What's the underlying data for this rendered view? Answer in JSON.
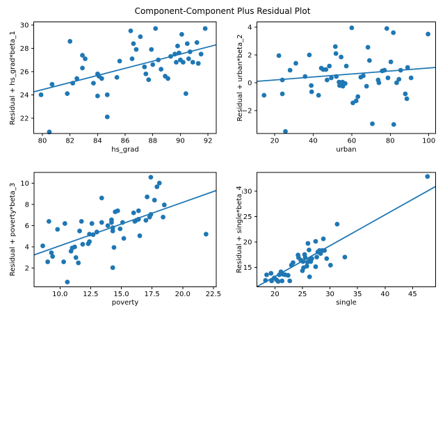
{
  "figure": {
    "title": "Component-Component Plus Residual Plot",
    "background": "#ffffff",
    "accent_color": "#1f77b4",
    "spine_color": "#000000"
  },
  "chart_data": [
    {
      "type": "scatter",
      "title": "",
      "xlabel": "hs_grad",
      "ylabel": "Residual + hs_grad*beta_1",
      "xlim": [
        79.37,
        92.6
      ],
      "ylim": [
        20.67,
        30.27
      ],
      "grid": false,
      "legend": "none",
      "xticks": [
        80,
        82,
        84,
        86,
        88,
        90,
        92
      ],
      "xtick_labels": [
        "80",
        "82",
        "84",
        "86",
        "88",
        "90",
        "92"
      ],
      "yticks": [
        22,
        24,
        26,
        28,
        30
      ],
      "ytick_labels": [
        "22",
        "24",
        "26",
        "28",
        "30"
      ],
      "points": [
        [
          79.9,
          24.0
        ],
        [
          80.5,
          20.8
        ],
        [
          80.7,
          24.9
        ],
        [
          81.8,
          24.1
        ],
        [
          82.0,
          28.6
        ],
        [
          82.2,
          25.0
        ],
        [
          82.5,
          25.4
        ],
        [
          82.9,
          27.4
        ],
        [
          82.9,
          26.3
        ],
        [
          83.1,
          27.1
        ],
        [
          83.7,
          25.0
        ],
        [
          84.0,
          25.8
        ],
        [
          84.0,
          23.9
        ],
        [
          84.1,
          25.6
        ],
        [
          84.3,
          25.4
        ],
        [
          84.7,
          22.1
        ],
        [
          84.7,
          24.0
        ],
        [
          85.4,
          25.5
        ],
        [
          85.6,
          26.9
        ],
        [
          86.4,
          29.5
        ],
        [
          86.5,
          27.1
        ],
        [
          86.6,
          28.4
        ],
        [
          86.8,
          27.9
        ],
        [
          87.1,
          29.0
        ],
        [
          87.4,
          26.4
        ],
        [
          87.5,
          25.8
        ],
        [
          87.7,
          25.3
        ],
        [
          87.9,
          27.9
        ],
        [
          88.0,
          26.6
        ],
        [
          88.2,
          29.7
        ],
        [
          88.4,
          27.0
        ],
        [
          88.6,
          26.2
        ],
        [
          88.9,
          25.6
        ],
        [
          89.1,
          25.4
        ],
        [
          89.3,
          27.3
        ],
        [
          89.6,
          27.5
        ],
        [
          89.7,
          26.8
        ],
        [
          89.8,
          28.2
        ],
        [
          89.9,
          27.6
        ],
        [
          90.0,
          27.0
        ],
        [
          90.1,
          29.2
        ],
        [
          90.2,
          26.8
        ],
        [
          90.4,
          24.1
        ],
        [
          90.5,
          28.4
        ],
        [
          90.6,
          27.1
        ],
        [
          90.7,
          27.7
        ],
        [
          90.9,
          26.8
        ],
        [
          91.2,
          28.5
        ],
        [
          91.3,
          26.7
        ],
        [
          91.5,
          27.5
        ],
        [
          91.8,
          29.7
        ]
      ],
      "trend_line": {
        "x": [
          79.37,
          92.6
        ],
        "y": [
          24.25,
          28.3
        ]
      }
    },
    {
      "type": "scatter",
      "title": "",
      "xlabel": "urban",
      "ylabel": "Residual + urban*beta_2",
      "xlim": [
        10.8,
        103.6
      ],
      "ylim": [
        -3.65,
        4.375
      ],
      "grid": false,
      "legend": "none",
      "xticks": [
        20,
        40,
        60,
        80,
        100
      ],
      "xtick_labels": [
        "20",
        "40",
        "60",
        "80",
        "100"
      ],
      "yticks": [
        -2,
        0,
        2,
        4
      ],
      "ytick_labels": [
        "−2",
        "0",
        "2",
        "4"
      ],
      "points": [
        [
          14.5,
          -0.9
        ],
        [
          22.2,
          1.95
        ],
        [
          24.0,
          0.2
        ],
        [
          24.0,
          -0.8
        ],
        [
          25.6,
          -3.5
        ],
        [
          28.0,
          0.9
        ],
        [
          31.0,
          1.4
        ],
        [
          35.8,
          0.45
        ],
        [
          38.0,
          2.0
        ],
        [
          39.0,
          -0.2
        ],
        [
          39.2,
          -0.65
        ],
        [
          42.8,
          -0.9
        ],
        [
          44.2,
          1.05
        ],
        [
          45.2,
          0.95
        ],
        [
          46.6,
          0.95
        ],
        [
          47.2,
          0.2
        ],
        [
          48.4,
          1.2
        ],
        [
          49.4,
          0.35
        ],
        [
          51.5,
          2.6
        ],
        [
          51.8,
          2.1
        ],
        [
          52.0,
          0.45
        ],
        [
          53.4,
          0.05
        ],
        [
          53.7,
          -0.2
        ],
        [
          54.5,
          1.85
        ],
        [
          55.2,
          0.05
        ],
        [
          55.4,
          -0.25
        ],
        [
          56.6,
          -0.05
        ],
        [
          57.2,
          1.2
        ],
        [
          60.0,
          3.95
        ],
        [
          60.6,
          -1.45
        ],
        [
          62.3,
          -1.3
        ],
        [
          63.2,
          -1.0
        ],
        [
          64.7,
          0.4
        ],
        [
          66.0,
          0.5
        ],
        [
          67.7,
          -0.25
        ],
        [
          68.4,
          2.55
        ],
        [
          69.2,
          1.6
        ],
        [
          70.7,
          -2.95
        ],
        [
          73.7,
          0.2
        ],
        [
          74.1,
          0.0
        ],
        [
          75.8,
          0.85
        ],
        [
          77.0,
          0.9
        ],
        [
          78.2,
          3.9
        ],
        [
          78.8,
          0.35
        ],
        [
          80.3,
          1.5
        ],
        [
          81.6,
          3.6
        ],
        [
          81.8,
          -3.0
        ],
        [
          83.3,
          0.0
        ],
        [
          84.5,
          0.25
        ],
        [
          85.4,
          0.9
        ],
        [
          87.8,
          -0.8
        ],
        [
          88.6,
          -1.15
        ],
        [
          89.0,
          1.1
        ],
        [
          90.8,
          0.35
        ],
        [
          99.6,
          3.5
        ]
      ],
      "trend_line": {
        "x": [
          10.8,
          103.6
        ],
        "y": [
          0.1,
          1.1
        ]
      }
    },
    {
      "type": "scatter",
      "title": "",
      "xlabel": "poverty",
      "ylabel": "Residual + poverty*beta_3",
      "xlim": [
        7.89,
        22.73
      ],
      "ylim": [
        0.25,
        11.0
      ],
      "grid": false,
      "legend": "none",
      "xticks": [
        10,
        12.5,
        15,
        17.5,
        20,
        22.5
      ],
      "xtick_labels": [
        "10.0",
        "12.5",
        "15.0",
        "17.5",
        "20.0",
        "22.5"
      ],
      "yticks": [
        2,
        4,
        6,
        8,
        10
      ],
      "ytick_labels": [
        "2",
        "4",
        "6",
        "8",
        "10"
      ],
      "points": [
        [
          8.6,
          4.1
        ],
        [
          9.0,
          2.6
        ],
        [
          9.1,
          6.4
        ],
        [
          9.3,
          3.45
        ],
        [
          9.4,
          3.1
        ],
        [
          9.8,
          5.65
        ],
        [
          10.3,
          2.6
        ],
        [
          10.4,
          6.2
        ],
        [
          10.6,
          0.7
        ],
        [
          10.9,
          3.6
        ],
        [
          11.0,
          3.9
        ],
        [
          11.2,
          4.0
        ],
        [
          11.3,
          3.0
        ],
        [
          11.5,
          2.5
        ],
        [
          11.6,
          5.5
        ],
        [
          11.75,
          6.4
        ],
        [
          11.85,
          4.25
        ],
        [
          12.3,
          4.3
        ],
        [
          12.4,
          5.2
        ],
        [
          12.4,
          4.5
        ],
        [
          12.6,
          6.2
        ],
        [
          12.7,
          5.15
        ],
        [
          13.0,
          5.4
        ],
        [
          13.4,
          8.6
        ],
        [
          13.4,
          6.3
        ],
        [
          13.9,
          6.0
        ],
        [
          14.2,
          6.55
        ],
        [
          14.2,
          6.3
        ],
        [
          14.3,
          5.8
        ],
        [
          14.3,
          5.5
        ],
        [
          14.4,
          3.95
        ],
        [
          14.3,
          2.05
        ],
        [
          14.5,
          7.3
        ],
        [
          14.7,
          7.4
        ],
        [
          14.9,
          5.7
        ],
        [
          15.1,
          6.3
        ],
        [
          15.2,
          4.8
        ],
        [
          16.0,
          7.2
        ],
        [
          16.1,
          6.4
        ],
        [
          16.2,
          6.5
        ],
        [
          16.4,
          6.6
        ],
        [
          16.4,
          7.4
        ],
        [
          16.5,
          5.05
        ],
        [
          17.0,
          6.5
        ],
        [
          17.1,
          8.7
        ],
        [
          17.3,
          6.8
        ],
        [
          17.4,
          7.05
        ],
        [
          17.4,
          10.55
        ],
        [
          17.7,
          8.4
        ],
        [
          17.9,
          9.65
        ],
        [
          18.1,
          10.0
        ],
        [
          18.4,
          6.8
        ],
        [
          18.5,
          7.95
        ],
        [
          21.9,
          5.2
        ]
      ],
      "trend_line": {
        "x": [
          7.89,
          22.73
        ],
        "y": [
          3.25,
          9.3
        ]
      }
    },
    {
      "type": "scatter",
      "title": "",
      "xlabel": "single",
      "ylabel": "Residual + single*beta_4",
      "xlim": [
        16.74,
        49.2
      ],
      "ylim": [
        11.13,
        33.7
      ],
      "grid": false,
      "legend": "none",
      "xticks": [
        20,
        25,
        30,
        35,
        40,
        45
      ],
      "xtick_labels": [
        "20",
        "25",
        "30",
        "35",
        "40",
        "45"
      ],
      "yticks": [
        15,
        20,
        25,
        30
      ],
      "ytick_labels": [
        "15",
        "20",
        "25",
        "30"
      ],
      "points": [
        [
          18.3,
          12.4
        ],
        [
          18.5,
          13.5
        ],
        [
          19.3,
          13.8
        ],
        [
          19.4,
          12.3
        ],
        [
          19.9,
          12.9
        ],
        [
          20.3,
          12.5
        ],
        [
          20.6,
          12.2
        ],
        [
          20.8,
          13.5
        ],
        [
          21.1,
          14.1
        ],
        [
          21.3,
          12.3
        ],
        [
          21.5,
          13.6
        ],
        [
          21.9,
          13.5
        ],
        [
          22.4,
          13.4
        ],
        [
          22.7,
          12.3
        ],
        [
          23.0,
          15.4
        ],
        [
          23.3,
          15.9
        ],
        [
          24.2,
          17.4
        ],
        [
          24.3,
          16.9
        ],
        [
          24.7,
          16.4
        ],
        [
          25.0,
          14.3
        ],
        [
          25.1,
          16.1
        ],
        [
          25.2,
          14.9
        ],
        [
          25.4,
          17.5
        ],
        [
          25.5,
          16.9
        ],
        [
          25.8,
          15.2
        ],
        [
          25.9,
          16.0
        ],
        [
          26.0,
          19.7
        ],
        [
          26.2,
          18.4
        ],
        [
          26.3,
          16.4
        ],
        [
          26.3,
          13.1
        ],
        [
          26.5,
          16.1
        ],
        [
          26.7,
          16.7
        ],
        [
          27.4,
          20.1
        ],
        [
          27.4,
          15.1
        ],
        [
          27.6,
          17.0
        ],
        [
          27.8,
          18.0
        ],
        [
          28.1,
          18.3
        ],
        [
          28.3,
          17.7
        ],
        [
          28.6,
          18.3
        ],
        [
          28.8,
          20.6
        ],
        [
          29.0,
          18.3
        ],
        [
          29.4,
          16.7
        ],
        [
          30.1,
          15.4
        ],
        [
          31.3,
          23.5
        ],
        [
          32.7,
          17.0
        ],
        [
          47.7,
          32.9
        ]
      ],
      "trend_line": {
        "x": [
          16.8,
          49.2
        ],
        "y": [
          11.2,
          30.95
        ]
      }
    }
  ]
}
